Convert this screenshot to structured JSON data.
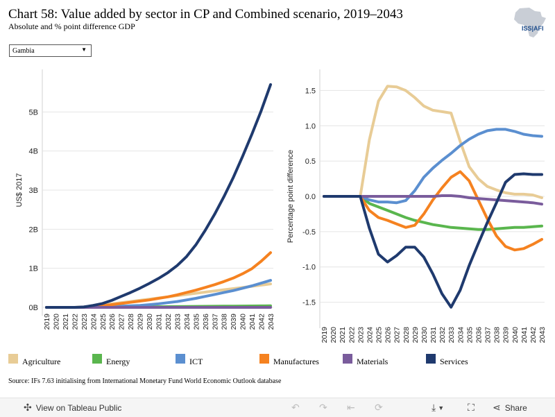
{
  "header": {
    "title": "Chart 58: Value added by sector in CP and Combined scenario, 2019–2043",
    "subtitle": "Absolute and % point difference GDP",
    "logo_text": "ISS|AFI"
  },
  "filter": {
    "selected": "Gambia"
  },
  "legend": [
    {
      "label": "Agriculture",
      "color": "#e8cc96"
    },
    {
      "label": "Energy",
      "color": "#5ab64e"
    },
    {
      "label": "ICT",
      "color": "#5b8fd0"
    },
    {
      "label": "Manufactures",
      "color": "#f58220"
    },
    {
      "label": "Materials",
      "color": "#7a5c9c"
    },
    {
      "label": "Services",
      "color": "#1f3a6e"
    }
  ],
  "source": "Source: IFs 7.63 initialising from International Monetary Fund World Economic Outlook database",
  "toolbar": {
    "view_label": "View on Tableau Public",
    "share_label": "Share"
  },
  "chart_data": [
    {
      "type": "line",
      "title": "",
      "ylabel": "US$ 2017",
      "xlabel": "",
      "ylim": [
        0,
        6
      ],
      "y_ticks": [
        0,
        1,
        2,
        3,
        4,
        5
      ],
      "y_tick_labels": [
        "0B",
        "1B",
        "2B",
        "3B",
        "4B",
        "5B"
      ],
      "x": [
        2019,
        2020,
        2021,
        2022,
        2023,
        2024,
        2025,
        2026,
        2027,
        2028,
        2029,
        2030,
        2031,
        2032,
        2033,
        2034,
        2035,
        2036,
        2037,
        2038,
        2039,
        2040,
        2041,
        2042,
        2043
      ],
      "series": [
        {
          "name": "Agriculture",
          "color": "#e8cc96",
          "values": [
            0,
            0,
            0,
            0,
            0.01,
            0.03,
            0.06,
            0.09,
            0.12,
            0.15,
            0.18,
            0.21,
            0.24,
            0.27,
            0.3,
            0.33,
            0.36,
            0.39,
            0.42,
            0.45,
            0.48,
            0.51,
            0.54,
            0.57,
            0.6
          ]
        },
        {
          "name": "Energy",
          "color": "#5ab64e",
          "values": [
            0,
            0,
            0,
            0,
            0,
            0,
            0,
            0.005,
            0.008,
            0.01,
            0.012,
            0.014,
            0.016,
            0.018,
            0.02,
            0.022,
            0.024,
            0.026,
            0.028,
            0.03,
            0.032,
            0.034,
            0.036,
            0.038,
            0.04
          ]
        },
        {
          "name": "ICT",
          "color": "#5b8fd0",
          "values": [
            0,
            0,
            0,
            0,
            0,
            0,
            0.01,
            0.02,
            0.03,
            0.04,
            0.05,
            0.07,
            0.09,
            0.12,
            0.15,
            0.19,
            0.23,
            0.28,
            0.33,
            0.38,
            0.43,
            0.49,
            0.55,
            0.62,
            0.69
          ]
        },
        {
          "name": "Manufactures",
          "color": "#f58220",
          "values": [
            0,
            0,
            0,
            0,
            0,
            0.02,
            0.04,
            0.07,
            0.1,
            0.13,
            0.16,
            0.19,
            0.23,
            0.27,
            0.32,
            0.38,
            0.44,
            0.51,
            0.58,
            0.66,
            0.75,
            0.86,
            0.99,
            1.18,
            1.4
          ]
        },
        {
          "name": "Materials",
          "color": "#7a5c9c",
          "values": [
            0,
            0,
            0,
            0,
            0,
            0,
            0,
            0,
            0,
            0,
            0,
            0,
            0,
            0,
            0,
            0,
            0,
            0,
            0,
            0,
            0,
            0,
            0,
            0,
            0
          ]
        },
        {
          "name": "Services",
          "color": "#1f3a6e",
          "values": [
            0,
            0,
            0,
            0,
            0.01,
            0.05,
            0.1,
            0.18,
            0.28,
            0.38,
            0.49,
            0.61,
            0.74,
            0.89,
            1.07,
            1.3,
            1.6,
            1.97,
            2.38,
            2.83,
            3.32,
            3.86,
            4.43,
            5.03,
            5.7
          ]
        }
      ]
    },
    {
      "type": "line",
      "title": "",
      "ylabel": "Percentage point difference",
      "xlabel": "",
      "ylim": [
        -1.75,
        1.75
      ],
      "y_ticks": [
        -1.5,
        -1.0,
        -0.5,
        0.0,
        0.5,
        1.0,
        1.5
      ],
      "y_tick_labels": [
        "-1.5",
        "-1.0",
        "-0.5",
        "0.0",
        "0.5",
        "1.0",
        "1.5"
      ],
      "x": [
        2019,
        2020,
        2021,
        2022,
        2023,
        2024,
        2025,
        2026,
        2027,
        2028,
        2029,
        2030,
        2031,
        2032,
        2033,
        2034,
        2035,
        2036,
        2037,
        2038,
        2039,
        2040,
        2041,
        2042,
        2043
      ],
      "series": [
        {
          "name": "Agriculture",
          "color": "#e8cc96",
          "values": [
            0,
            0,
            0,
            0,
            0,
            0.8,
            1.35,
            1.56,
            1.55,
            1.5,
            1.4,
            1.28,
            1.22,
            1.2,
            1.18,
            0.78,
            0.42,
            0.25,
            0.14,
            0.09,
            0.05,
            0.03,
            0.03,
            0.02,
            -0.02
          ]
        },
        {
          "name": "Energy",
          "color": "#5ab64e",
          "values": [
            0,
            0,
            0,
            0,
            0,
            -0.1,
            -0.15,
            -0.2,
            -0.25,
            -0.3,
            -0.34,
            -0.37,
            -0.4,
            -0.42,
            -0.44,
            -0.45,
            -0.46,
            -0.47,
            -0.47,
            -0.46,
            -0.45,
            -0.44,
            -0.44,
            -0.43,
            -0.42
          ]
        },
        {
          "name": "ICT",
          "color": "#5b8fd0",
          "values": [
            0,
            0,
            0,
            0,
            0,
            -0.05,
            -0.08,
            -0.08,
            -0.09,
            -0.06,
            0.08,
            0.27,
            0.4,
            0.51,
            0.61,
            0.72,
            0.81,
            0.88,
            0.93,
            0.95,
            0.95,
            0.92,
            0.88,
            0.86,
            0.85
          ]
        },
        {
          "name": "Manufactures",
          "color": "#f58220",
          "values": [
            0,
            0,
            0,
            0,
            0,
            -0.2,
            -0.3,
            -0.34,
            -0.39,
            -0.44,
            -0.41,
            -0.25,
            -0.05,
            0.12,
            0.27,
            0.35,
            0.22,
            -0.05,
            -0.32,
            -0.56,
            -0.71,
            -0.76,
            -0.74,
            -0.68,
            -0.61
          ]
        },
        {
          "name": "Materials",
          "color": "#7a5c9c",
          "values": [
            0,
            0,
            0,
            0,
            0,
            0,
            0,
            0,
            0,
            0,
            0,
            0,
            0,
            0.01,
            0.01,
            0,
            -0.02,
            -0.03,
            -0.04,
            -0.05,
            -0.06,
            -0.07,
            -0.08,
            -0.09,
            -0.11
          ]
        },
        {
          "name": "Services",
          "color": "#1f3a6e",
          "values": [
            0,
            0,
            0,
            0,
            0,
            -0.45,
            -0.82,
            -0.93,
            -0.84,
            -0.72,
            -0.72,
            -0.86,
            -1.1,
            -1.38,
            -1.57,
            -1.33,
            -0.98,
            -0.67,
            -0.37,
            -0.09,
            0.2,
            0.31,
            0.32,
            0.31,
            0.31
          ]
        }
      ]
    }
  ]
}
